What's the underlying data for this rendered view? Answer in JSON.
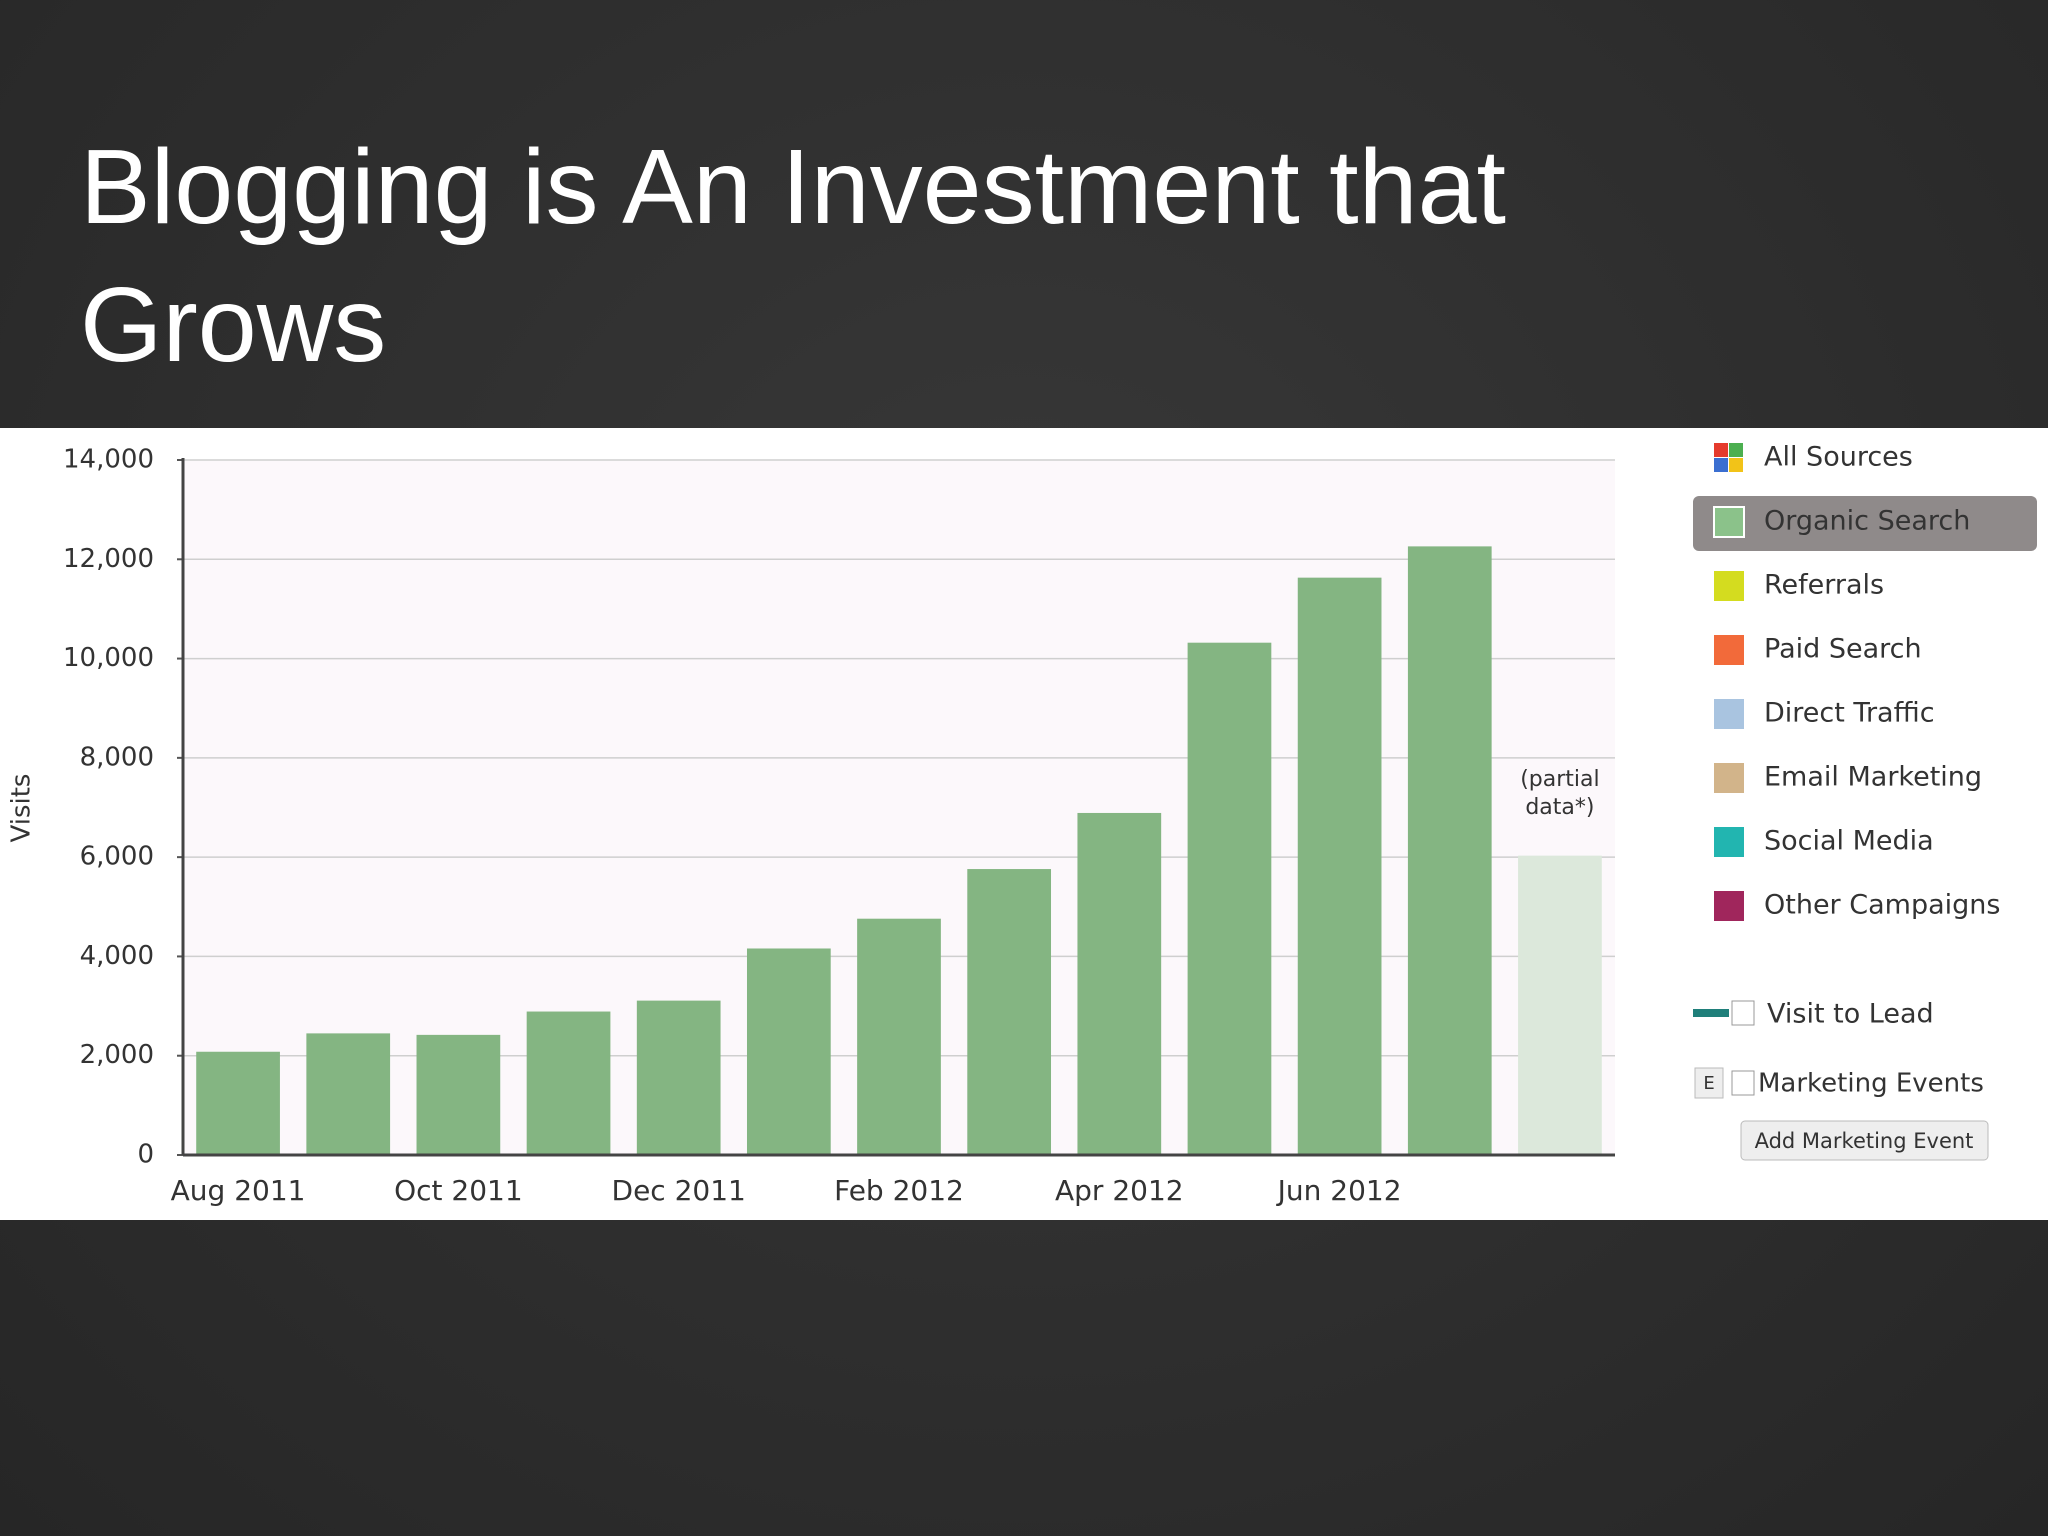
{
  "chart_data": {
    "type": "bar",
    "title": "Blogging is An Investment that Grows",
    "y_label": "Visits",
    "categories": [
      "Aug 2011",
      null,
      "Oct 2011",
      null,
      "Dec 2011",
      null,
      "Feb 2012",
      null,
      "Apr 2012",
      null,
      "Jun 2012",
      null,
      null
    ],
    "values": [
      2080,
      2450,
      2420,
      2890,
      3110,
      4160,
      4760,
      5760,
      6890,
      10320,
      11630,
      12260,
      6030
    ],
    "colors": [
      "#84b582",
      "#84b582",
      "#84b582",
      "#84b582",
      "#84b582",
      "#84b582",
      "#84b582",
      "#84b582",
      "#84b582",
      "#84b582",
      "#84b582",
      "#84b582",
      "#dce8db"
    ],
    "annotation": [
      "(partial",
      "data*)"
    ],
    "ylim": [
      0,
      14000
    ],
    "yticks": [
      0,
      {
        "value": 2000,
        "label": "2,000"
      },
      {
        "value": 4000,
        "label": "4,000"
      },
      {
        "value": 6000,
        "label": "6,000"
      },
      {
        "value": 8000,
        "label": "8,000"
      },
      {
        "value": 10000,
        "label": "10,000"
      },
      {
        "value": 12000,
        "label": "12,000"
      },
      {
        "value": 14000,
        "label": "14,000"
      }
    ],
    "grid": true,
    "sources": [
      {
        "name": "All Sources"
      },
      {
        "name": "Organic Search",
        "color": "#8bc28a"
      },
      {
        "name": "Referrals",
        "color": "#d4dc1f"
      },
      {
        "name": "Paid Search",
        "color": "#f26a3a"
      },
      {
        "name": "Direct Traffic",
        "color": "#a9c4e0"
      },
      {
        "name": "Email Marketing",
        "color": "#d2b48a"
      },
      {
        "name": "Social Media",
        "color": "#22b5b0"
      },
      {
        "name": "Other Campaigns",
        "color": "#a0265c"
      }
    ],
    "selected_source": 1
  },
  "sidebar": {
    "visit_to_lead": "Visit to Lead",
    "event_icon": "E",
    "marketing_events": "Marketing Events",
    "add_event": "Add Marketing Event"
  }
}
